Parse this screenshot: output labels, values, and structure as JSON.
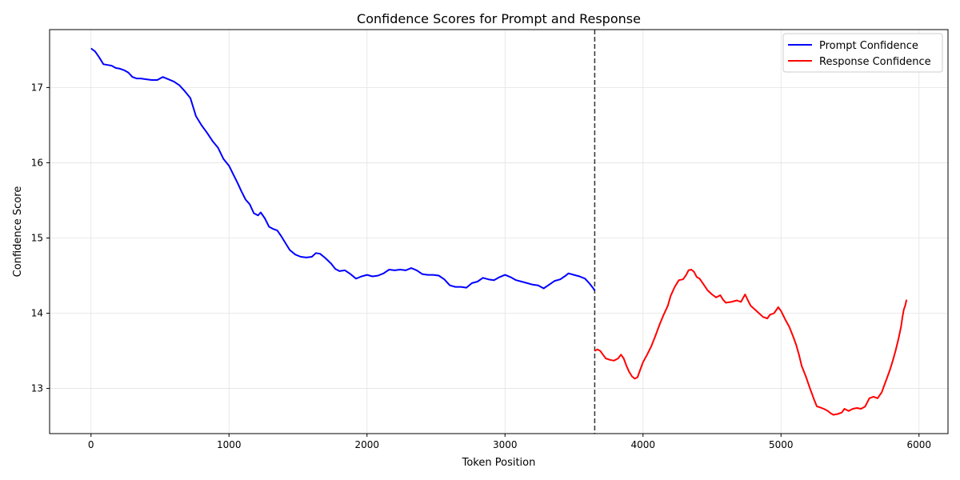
{
  "chart_data": {
    "type": "line",
    "title": "Confidence Scores for Prompt and Response",
    "xlabel": "Token Position",
    "ylabel": "Confidence Score",
    "xlim": [
      -300,
      6210
    ],
    "ylim": [
      12.4,
      17.77
    ],
    "xticks": [
      0,
      1000,
      2000,
      3000,
      4000,
      5000,
      6000
    ],
    "yticks": [
      13,
      14,
      15,
      16,
      17
    ],
    "grid": true,
    "legend_position": "top-right",
    "divider_x": 3650,
    "series": [
      {
        "name": "Prompt Confidence",
        "color": "#0000ff",
        "points": [
          [
            0,
            17.52
          ],
          [
            30,
            17.48
          ],
          [
            60,
            17.4
          ],
          [
            90,
            17.31
          ],
          [
            120,
            17.3
          ],
          [
            150,
            17.29
          ],
          [
            180,
            17.26
          ],
          [
            210,
            17.25
          ],
          [
            240,
            17.23
          ],
          [
            270,
            17.2
          ],
          [
            300,
            17.14
          ],
          [
            330,
            17.12
          ],
          [
            360,
            17.12
          ],
          [
            400,
            17.11
          ],
          [
            440,
            17.1
          ],
          [
            480,
            17.1
          ],
          [
            520,
            17.14
          ],
          [
            560,
            17.11
          ],
          [
            600,
            17.08
          ],
          [
            640,
            17.03
          ],
          [
            680,
            16.95
          ],
          [
            720,
            16.86
          ],
          [
            760,
            16.62
          ],
          [
            800,
            16.5
          ],
          [
            840,
            16.4
          ],
          [
            880,
            16.29
          ],
          [
            920,
            16.2
          ],
          [
            960,
            16.05
          ],
          [
            1000,
            15.96
          ],
          [
            1030,
            15.85
          ],
          [
            1060,
            15.74
          ],
          [
            1090,
            15.62
          ],
          [
            1120,
            15.51
          ],
          [
            1150,
            15.45
          ],
          [
            1180,
            15.33
          ],
          [
            1210,
            15.3
          ],
          [
            1230,
            15.34
          ],
          [
            1260,
            15.26
          ],
          [
            1290,
            15.15
          ],
          [
            1320,
            15.12
          ],
          [
            1350,
            15.1
          ],
          [
            1380,
            15.02
          ],
          [
            1410,
            14.93
          ],
          [
            1440,
            14.84
          ],
          [
            1480,
            14.78
          ],
          [
            1520,
            14.75
          ],
          [
            1560,
            14.74
          ],
          [
            1600,
            14.75
          ],
          [
            1630,
            14.8
          ],
          [
            1660,
            14.79
          ],
          [
            1700,
            14.73
          ],
          [
            1740,
            14.66
          ],
          [
            1770,
            14.59
          ],
          [
            1800,
            14.56
          ],
          [
            1840,
            14.57
          ],
          [
            1880,
            14.52
          ],
          [
            1920,
            14.46
          ],
          [
            1960,
            14.49
          ],
          [
            2000,
            14.51
          ],
          [
            2040,
            14.49
          ],
          [
            2080,
            14.5
          ],
          [
            2120,
            14.53
          ],
          [
            2160,
            14.58
          ],
          [
            2200,
            14.57
          ],
          [
            2240,
            14.58
          ],
          [
            2280,
            14.57
          ],
          [
            2320,
            14.6
          ],
          [
            2360,
            14.57
          ],
          [
            2400,
            14.52
          ],
          [
            2440,
            14.51
          ],
          [
            2480,
            14.51
          ],
          [
            2520,
            14.5
          ],
          [
            2560,
            14.45
          ],
          [
            2600,
            14.37
          ],
          [
            2640,
            14.35
          ],
          [
            2680,
            14.35
          ],
          [
            2720,
            14.34
          ],
          [
            2760,
            14.4
          ],
          [
            2800,
            14.42
          ],
          [
            2840,
            14.47
          ],
          [
            2880,
            14.45
          ],
          [
            2920,
            14.44
          ],
          [
            2960,
            14.48
          ],
          [
            3000,
            14.51
          ],
          [
            3040,
            14.48
          ],
          [
            3080,
            14.44
          ],
          [
            3120,
            14.42
          ],
          [
            3160,
            14.4
          ],
          [
            3200,
            14.38
          ],
          [
            3240,
            14.37
          ],
          [
            3280,
            14.33
          ],
          [
            3320,
            14.38
          ],
          [
            3360,
            14.43
          ],
          [
            3400,
            14.45
          ],
          [
            3440,
            14.5
          ],
          [
            3460,
            14.53
          ],
          [
            3500,
            14.51
          ],
          [
            3540,
            14.49
          ],
          [
            3580,
            14.46
          ],
          [
            3610,
            14.4
          ],
          [
            3640,
            14.33
          ],
          [
            3650,
            14.3
          ]
        ]
      },
      {
        "name": "Response Confidence",
        "color": "#ff0000",
        "points": [
          [
            3650,
            13.5
          ],
          [
            3670,
            13.52
          ],
          [
            3690,
            13.5
          ],
          [
            3710,
            13.45
          ],
          [
            3730,
            13.4
          ],
          [
            3760,
            13.38
          ],
          [
            3790,
            13.37
          ],
          [
            3820,
            13.4
          ],
          [
            3840,
            13.45
          ],
          [
            3860,
            13.4
          ],
          [
            3880,
            13.3
          ],
          [
            3900,
            13.22
          ],
          [
            3920,
            13.16
          ],
          [
            3940,
            13.13
          ],
          [
            3960,
            13.15
          ],
          [
            3980,
            13.25
          ],
          [
            4000,
            13.35
          ],
          [
            4030,
            13.45
          ],
          [
            4060,
            13.56
          ],
          [
            4090,
            13.7
          ],
          [
            4120,
            13.85
          ],
          [
            4150,
            13.98
          ],
          [
            4180,
            14.1
          ],
          [
            4200,
            14.23
          ],
          [
            4230,
            14.35
          ],
          [
            4260,
            14.44
          ],
          [
            4290,
            14.45
          ],
          [
            4310,
            14.5
          ],
          [
            4330,
            14.57
          ],
          [
            4350,
            14.58
          ],
          [
            4370,
            14.55
          ],
          [
            4390,
            14.48
          ],
          [
            4410,
            14.46
          ],
          [
            4440,
            14.38
          ],
          [
            4470,
            14.3
          ],
          [
            4500,
            14.25
          ],
          [
            4530,
            14.21
          ],
          [
            4560,
            14.24
          ],
          [
            4580,
            14.18
          ],
          [
            4600,
            14.14
          ],
          [
            4640,
            14.15
          ],
          [
            4680,
            14.17
          ],
          [
            4710,
            14.15
          ],
          [
            4740,
            14.25
          ],
          [
            4760,
            14.17
          ],
          [
            4780,
            14.1
          ],
          [
            4810,
            14.05
          ],
          [
            4840,
            14.0
          ],
          [
            4870,
            13.95
          ],
          [
            4900,
            13.93
          ],
          [
            4920,
            13.98
          ],
          [
            4950,
            14.0
          ],
          [
            4980,
            14.08
          ],
          [
            5000,
            14.03
          ],
          [
            5030,
            13.92
          ],
          [
            5060,
            13.82
          ],
          [
            5090,
            13.68
          ],
          [
            5110,
            13.58
          ],
          [
            5130,
            13.45
          ],
          [
            5150,
            13.3
          ],
          [
            5180,
            13.16
          ],
          [
            5210,
            13.0
          ],
          [
            5240,
            12.85
          ],
          [
            5260,
            12.76
          ],
          [
            5280,
            12.75
          ],
          [
            5310,
            12.73
          ],
          [
            5340,
            12.7
          ],
          [
            5360,
            12.67
          ],
          [
            5380,
            12.65
          ],
          [
            5410,
            12.66
          ],
          [
            5440,
            12.68
          ],
          [
            5460,
            12.73
          ],
          [
            5490,
            12.7
          ],
          [
            5520,
            12.73
          ],
          [
            5550,
            12.74
          ],
          [
            5580,
            12.73
          ],
          [
            5610,
            12.76
          ],
          [
            5640,
            12.87
          ],
          [
            5670,
            12.89
          ],
          [
            5700,
            12.87
          ],
          [
            5730,
            12.95
          ],
          [
            5750,
            13.05
          ],
          [
            5770,
            13.15
          ],
          [
            5790,
            13.25
          ],
          [
            5810,
            13.37
          ],
          [
            5830,
            13.5
          ],
          [
            5850,
            13.65
          ],
          [
            5870,
            13.82
          ],
          [
            5880,
            13.95
          ],
          [
            5890,
            14.05
          ],
          [
            5900,
            14.1
          ],
          [
            5910,
            14.18
          ]
        ]
      }
    ]
  }
}
